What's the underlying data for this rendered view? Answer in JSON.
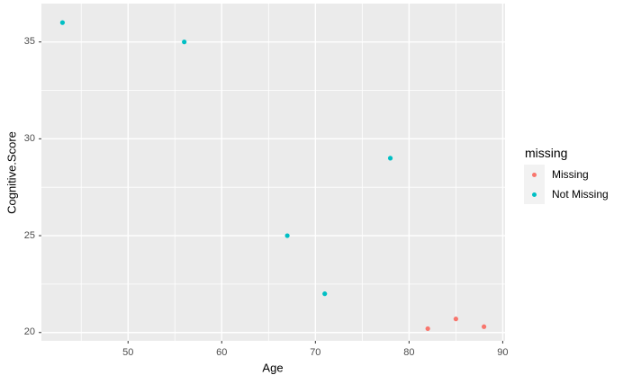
{
  "chart_data": {
    "type": "scatter",
    "title": "",
    "xlabel": "Age",
    "ylabel": "Cognitive.Score",
    "xlim": [
      40.75,
      90.25
    ],
    "ylim": [
      19.57,
      36.98
    ],
    "x_major_ticks": [
      50,
      60,
      70,
      80,
      90
    ],
    "x_minor_ticks": [
      45,
      55,
      65,
      75,
      85
    ],
    "y_major_ticks": [
      20,
      25,
      30,
      35
    ],
    "y_minor_ticks": [
      22.5,
      27.5,
      32.5
    ],
    "grid": "on",
    "panel_bg": "#EBEBEB",
    "grid_color": "#FFFFFF",
    "tick_mark_color": "#333333",
    "tick_label_color": "#4D4D4D",
    "legend": {
      "position": "right",
      "title": "missing",
      "entries": [
        {
          "label": "Missing",
          "color": "#F8766D"
        },
        {
          "label": "Not Missing",
          "color": "#00BFC4"
        }
      ]
    },
    "series": [
      {
        "name": "Missing",
        "color": "#F8766D",
        "points": [
          [
            82,
            20.2
          ],
          [
            85,
            20.7
          ],
          [
            88,
            20.3
          ]
        ]
      },
      {
        "name": "Not Missing",
        "color": "#00BFC4",
        "points": [
          [
            43,
            36
          ],
          [
            56,
            35
          ],
          [
            67,
            25
          ],
          [
            71,
            22
          ],
          [
            78,
            29
          ]
        ]
      }
    ]
  }
}
